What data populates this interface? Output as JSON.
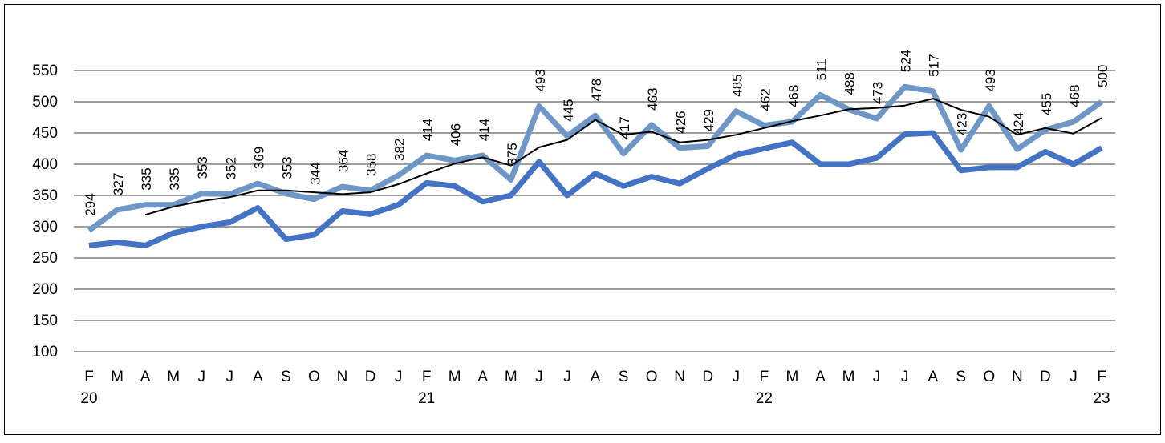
{
  "chart_data": {
    "type": "line",
    "ylim": [
      100,
      550
    ],
    "y_ticks": [
      100,
      150,
      200,
      250,
      300,
      350,
      400,
      450,
      500,
      550
    ],
    "grid": true,
    "legend": "none",
    "categories": [
      "F",
      "M",
      "A",
      "M",
      "J",
      "J",
      "A",
      "S",
      "O",
      "N",
      "D",
      "J",
      "F",
      "M",
      "A",
      "M",
      "J",
      "J",
      "A",
      "S",
      "O",
      "N",
      "D",
      "J",
      "F",
      "M",
      "A",
      "M",
      "J",
      "J",
      "A",
      "S",
      "O",
      "N",
      "D",
      "J",
      "F"
    ],
    "year_labels": [
      {
        "index": 0,
        "label": "20"
      },
      {
        "index": 12,
        "label": "21"
      },
      {
        "index": 24,
        "label": "22"
      },
      {
        "index": 36,
        "label": "23"
      }
    ],
    "series": [
      {
        "role": "labeled",
        "color": "#6e97c8",
        "values": [
          294,
          327,
          335,
          335,
          353,
          352,
          369,
          353,
          344,
          364,
          358,
          382,
          414,
          406,
          414,
          375,
          493,
          445,
          478,
          417,
          463,
          426,
          429,
          485,
          462,
          468,
          511,
          488,
          473,
          524,
          517,
          423,
          493,
          424,
          455,
          468,
          500
        ],
        "data_labels": true
      },
      {
        "role": "lower",
        "color": "#4472c4",
        "values": [
          270,
          275,
          270,
          290,
          300,
          307,
          330,
          280,
          287,
          325,
          320,
          335,
          370,
          365,
          340,
          350,
          404,
          350,
          385,
          365,
          380,
          369,
          393,
          415,
          425,
          435,
          400,
          400,
          410,
          448,
          450,
          390,
          395,
          395,
          420,
          400,
          426
        ],
        "data_labels": false
      },
      {
        "role": "trend",
        "color": "#000000",
        "values": [
          null,
          null,
          319,
          332,
          341,
          347,
          358,
          358,
          355,
          352,
          355,
          368,
          385,
          401,
          411,
          398,
          427,
          439,
          471,
          447,
          452,
          435,
          439,
          447,
          458,
          469,
          478,
          488,
          490,
          494,
          505,
          487,
          476,
          447,
          458,
          449,
          474
        ],
        "data_labels": false
      }
    ]
  }
}
